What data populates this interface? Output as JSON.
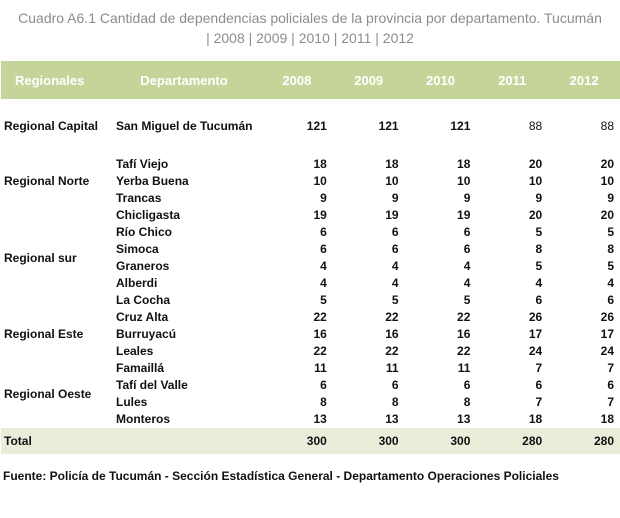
{
  "title": {
    "line1": "Cuadro A6.1 Cantidad de dependencias policiales de la provincia por departamento. Tucumán",
    "line2": "| 2008 | 2009 | 2010 | 2011 | 2012"
  },
  "header": {
    "regionales": "Regionales",
    "departamento": "Departamento",
    "years": [
      "2008",
      "2009",
      "2010",
      "2011",
      "2012"
    ]
  },
  "capital": {
    "region": "Regional Capital",
    "dept": "San Miguel de Tucumán",
    "values": [
      "121",
      "121",
      "121",
      "88",
      "88"
    ]
  },
  "regions": {
    "norte": "Regional Norte",
    "sur": "Regional sur",
    "este": "Regional Este",
    "oeste": "Regional Oeste"
  },
  "rows": [
    {
      "dept": "Tafí Viejo",
      "values": [
        "18",
        "18",
        "18",
        "20",
        "20"
      ]
    },
    {
      "dept": "Yerba Buena",
      "values": [
        "10",
        "10",
        "10",
        "10",
        "10"
      ]
    },
    {
      "dept": "Trancas",
      "values": [
        "9",
        "9",
        "9",
        "9",
        "9"
      ]
    },
    {
      "dept": "Chicligasta",
      "values": [
        "19",
        "19",
        "19",
        "20",
        "20"
      ]
    },
    {
      "dept": "Río Chico",
      "values": [
        "6",
        "6",
        "6",
        "5",
        "5"
      ]
    },
    {
      "dept": "Simoca",
      "values": [
        "6",
        "6",
        "6",
        "8",
        "8"
      ]
    },
    {
      "dept": "Graneros",
      "values": [
        "4",
        "4",
        "4",
        "5",
        "5"
      ]
    },
    {
      "dept": "Alberdi",
      "values": [
        "4",
        "4",
        "4",
        "4",
        "4"
      ]
    },
    {
      "dept": "La Cocha",
      "values": [
        "5",
        "5",
        "5",
        "6",
        "6"
      ]
    },
    {
      "dept": "Cruz Alta",
      "values": [
        "22",
        "22",
        "22",
        "26",
        "26"
      ]
    },
    {
      "dept": "Burruyacú",
      "values": [
        "16",
        "16",
        "16",
        "17",
        "17"
      ]
    },
    {
      "dept": "Leales",
      "values": [
        "22",
        "22",
        "22",
        "24",
        "24"
      ]
    },
    {
      "dept": "Famaillá",
      "values": [
        "11",
        "11",
        "11",
        "7",
        "7"
      ]
    },
    {
      "dept": "Tafí del Valle",
      "values": [
        "6",
        "6",
        "6",
        "6",
        "6"
      ]
    },
    {
      "dept": "Lules",
      "values": [
        "8",
        "8",
        "8",
        "7",
        "7"
      ]
    },
    {
      "dept": "Monteros",
      "values": [
        "13",
        "13",
        "13",
        "18",
        "18"
      ]
    }
  ],
  "total": {
    "label": "Total",
    "values": [
      "300",
      "300",
      "300",
      "280",
      "280"
    ]
  },
  "source": "Fuente: Policía de Tucumán - Sección Estadística General - Departamento Operaciones Policiales"
}
